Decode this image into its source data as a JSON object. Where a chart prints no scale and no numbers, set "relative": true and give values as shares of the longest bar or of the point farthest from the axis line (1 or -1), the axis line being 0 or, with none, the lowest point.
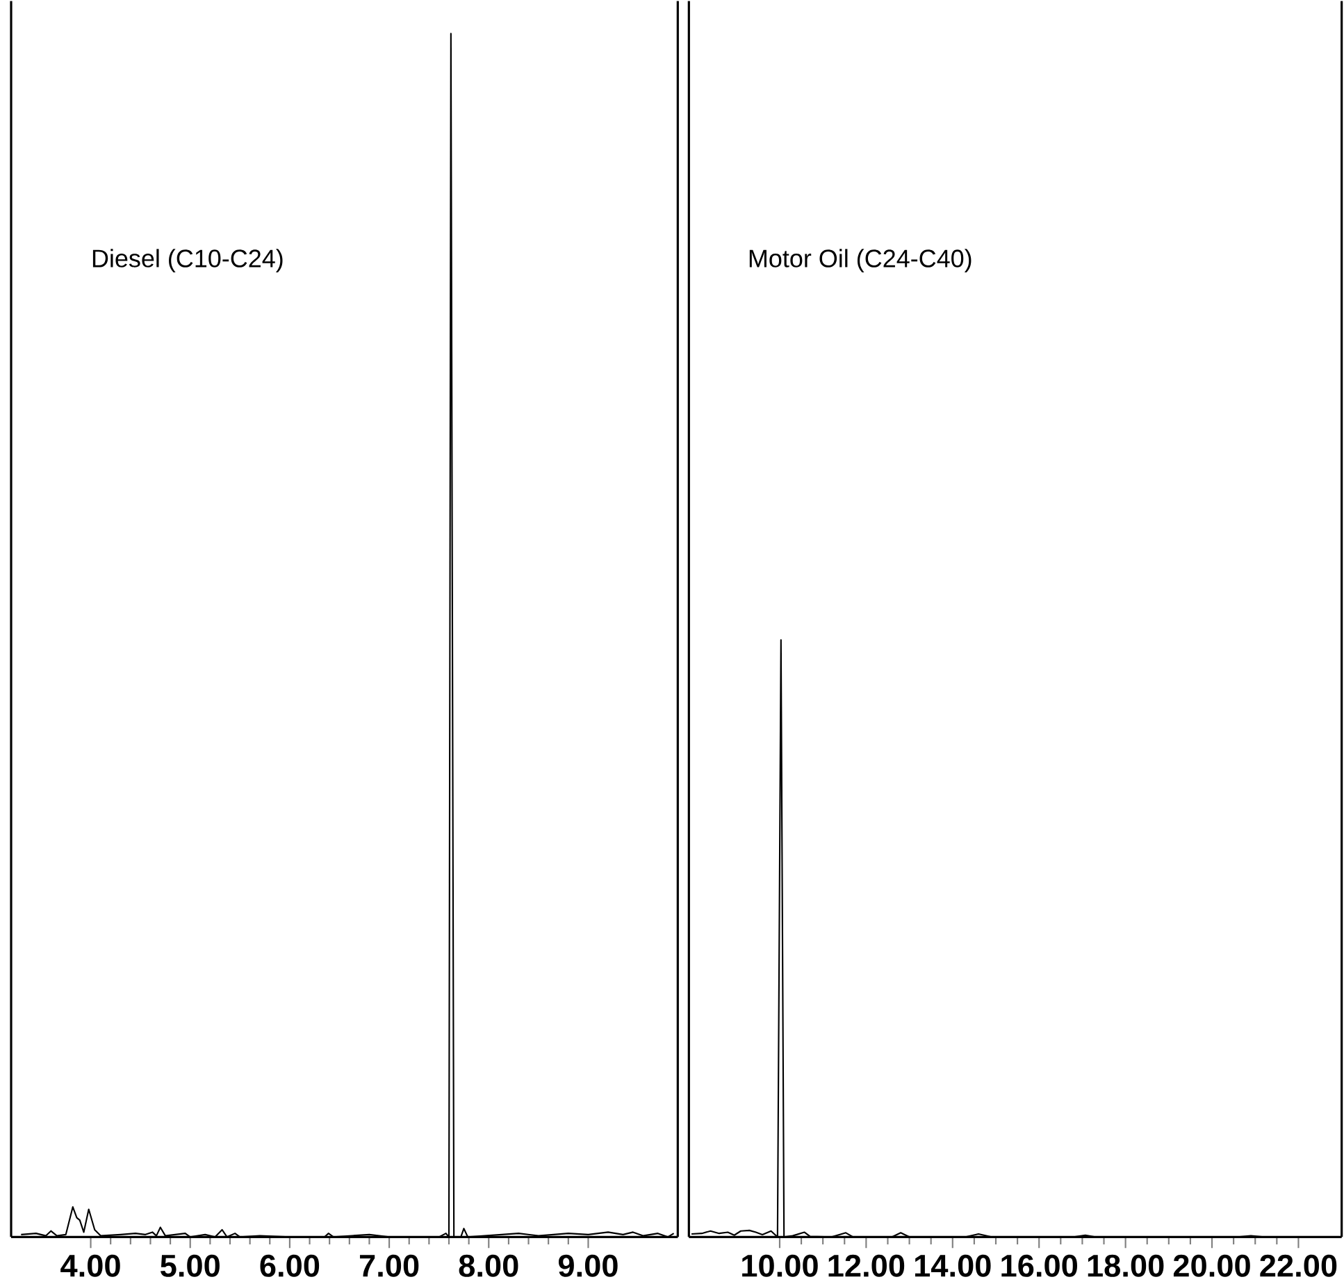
{
  "chart_data": [
    {
      "type": "line",
      "relative": true,
      "color": "#000000",
      "annotations": [
        "Diesel (C10-C24)"
      ],
      "xlim": [
        3.2,
        9.9
      ],
      "xticks": [
        {
          "value": 4,
          "label": "4.00"
        },
        {
          "value": 5,
          "label": "5.00"
        },
        {
          "value": 6,
          "label": "6.00"
        },
        {
          "value": 7,
          "label": "7.00"
        },
        {
          "value": 8,
          "label": "8.00"
        },
        {
          "value": 9,
          "label": "9.00"
        }
      ],
      "tick_labels": "x",
      "x": [
        3.3,
        3.45,
        3.55,
        3.6,
        3.66,
        3.75,
        3.82,
        3.86,
        3.89,
        3.93,
        3.98,
        4.04,
        4.1,
        4.3,
        4.45,
        4.55,
        4.62,
        4.66,
        4.7,
        4.75,
        4.95,
        5.0,
        5.15,
        5.25,
        5.32,
        5.37,
        5.45,
        5.5,
        5.7,
        6.0,
        6.35,
        6.39,
        6.44,
        6.8,
        7.0,
        7.5,
        7.57,
        7.6,
        7.62,
        7.65,
        7.72,
        7.75,
        7.79,
        8.3,
        8.5,
        8.8,
        9.0,
        9.2,
        9.35,
        9.45,
        9.55,
        9.7,
        9.8,
        9.86
      ],
      "values": [
        0.002,
        0.003,
        0.001,
        0.005,
        0.001,
        0.002,
        0.025,
        0.016,
        0.014,
        0.004,
        0.023,
        0.006,
        0.001,
        0.002,
        0.003,
        0.002,
        0.004,
        0.001,
        0.008,
        0.001,
        0.003,
        0.0,
        0.002,
        0.0,
        0.006,
        0.0,
        0.003,
        0.0,
        0.001,
        0.0,
        0.0,
        0.003,
        0.0,
        0.002,
        0.0,
        0.0,
        0.003,
        0.0,
        1.0,
        0.0,
        0.0,
        0.007,
        0.0,
        0.003,
        0.001,
        0.003,
        0.002,
        0.004,
        0.002,
        0.004,
        0.001,
        0.003,
        0.0,
        0.003
      ]
    },
    {
      "type": "line",
      "relative": true,
      "color": "#000000",
      "annotations": [
        "Motor Oil (C24-C40)"
      ],
      "xlim": [
        7.9,
        23.0
      ],
      "xticks": [
        {
          "value": 10,
          "label": "10.00"
        },
        {
          "value": 12,
          "label": "12.00"
        },
        {
          "value": 14,
          "label": "14.00"
        },
        {
          "value": 16,
          "label": "16.00"
        },
        {
          "value": 18,
          "label": "18.00"
        },
        {
          "value": 20,
          "label": "20.00"
        },
        {
          "value": 22,
          "label": "22.00"
        }
      ],
      "tick_labels": "x",
      "x": [
        7.96,
        8.2,
        8.4,
        8.6,
        8.8,
        8.95,
        9.1,
        9.3,
        9.45,
        9.6,
        9.8,
        9.95,
        10.03,
        10.1,
        10.3,
        10.57,
        10.7,
        11.2,
        11.53,
        11.7,
        12.6,
        12.8,
        13.0,
        14.3,
        14.6,
        14.9,
        16.8,
        17.07,
        17.3,
        20.6,
        20.9,
        21.2,
        22.9
      ],
      "values": [
        0.005,
        0.006,
        0.01,
        0.006,
        0.008,
        0.003,
        0.01,
        0.011,
        0.008,
        0.004,
        0.01,
        0.0,
        1.0,
        0.0,
        0.002,
        0.008,
        0.001,
        0.0,
        0.007,
        0.0,
        0.0,
        0.007,
        0.0,
        0.0,
        0.005,
        0.0,
        0.0,
        0.003,
        0.0,
        0.0,
        0.002,
        0.0,
        0.0
      ]
    }
  ]
}
